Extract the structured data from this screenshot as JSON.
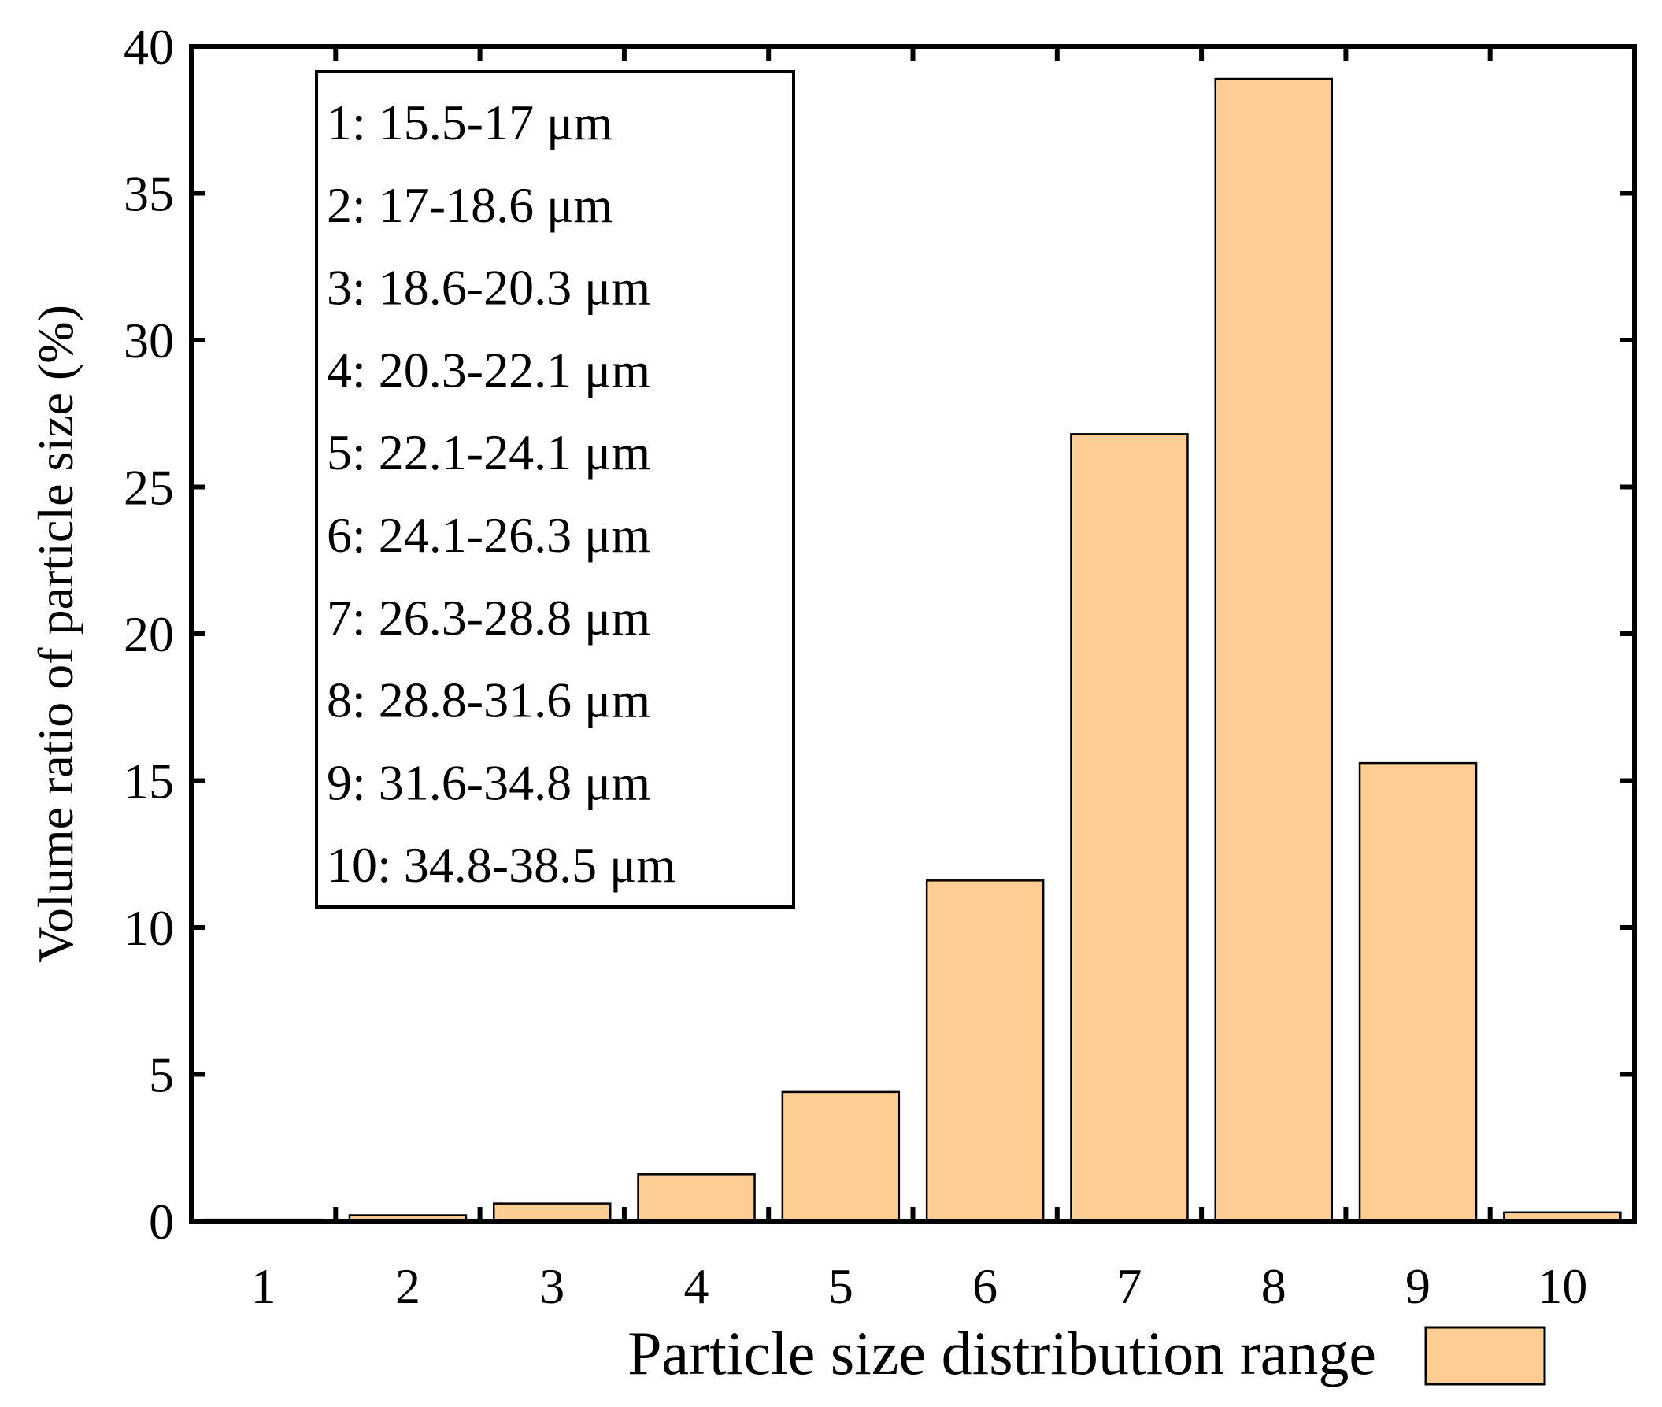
{
  "chart_data": {
    "type": "bar",
    "title": "",
    "xlabel": "Particle size distribution range",
    "ylabel": "Volume ratio of particle size (%)",
    "categories": [
      "1",
      "2",
      "3",
      "4",
      "5",
      "6",
      "7",
      "8",
      "9",
      "10"
    ],
    "values": [
      0.05,
      0.2,
      0.6,
      1.6,
      4.4,
      11.6,
      26.8,
      38.9,
      15.6,
      0.3
    ],
    "ylim": [
      0,
      40
    ],
    "yticks": [
      "0",
      "5",
      "10",
      "15",
      "20",
      "25",
      "30",
      "35",
      "40"
    ],
    "grid": false,
    "bar_color": "#fdcd93",
    "bar_edge_color": "#000000",
    "legend_placement": "bottom-right",
    "annotation_box": {
      "placement": "top-left",
      "lines": [
        "1: 15.5-17 μm",
        "2: 17-18.6 μm",
        "3: 18.6-20.3 μm",
        "4: 20.3-22.1 μm",
        "5: 22.1-24.1 μm",
        "6: 24.1-26.3 μm",
        "7: 26.3-28.8 μm",
        "8: 28.8-31.6 μm",
        "9: 31.6-34.8 μm",
        "10: 34.8-38.5 μm"
      ]
    }
  }
}
